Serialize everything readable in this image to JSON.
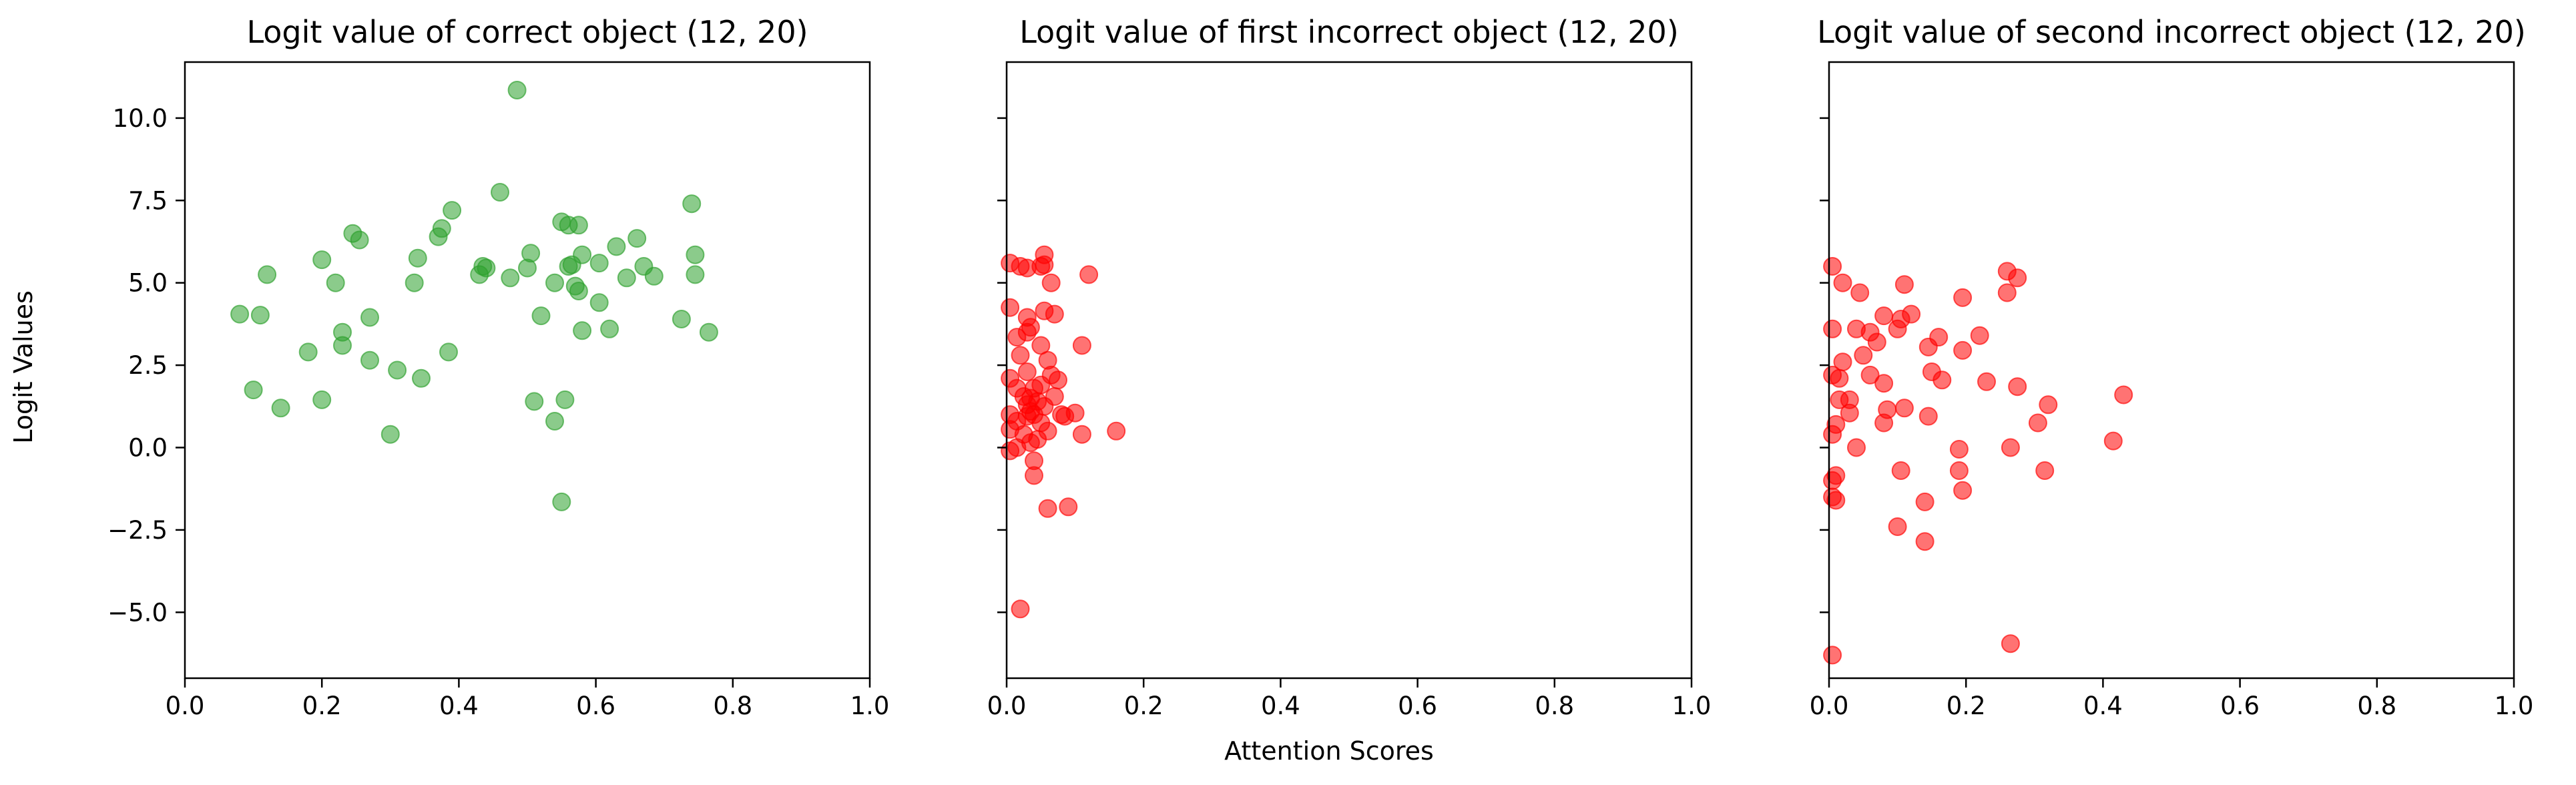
{
  "figure": {
    "xlabel": "Attention Scores",
    "ylabel": "Logit Values"
  },
  "chart_data": [
    {
      "type": "scatter",
      "title": "Logit value of correct object (12, 20)",
      "xlabel": "",
      "ylabel": "Logit Values",
      "xlim": [
        0.0,
        1.0
      ],
      "ylim": [
        -7.0,
        11.7
      ],
      "xticks": [
        0.0,
        0.2,
        0.4,
        0.6,
        0.8,
        1.0
      ],
      "xtick_labels": [
        "0.0",
        "0.2",
        "0.4",
        "0.6",
        "0.8",
        "1.0"
      ],
      "yticks": [
        -5.0,
        -2.5,
        0.0,
        2.5,
        5.0,
        7.5,
        10.0
      ],
      "ytick_labels": [
        "−5.0",
        "−2.5",
        "0.0",
        "2.5",
        "5.0",
        "7.5",
        "10.0"
      ],
      "marker_color": "#2ca02c",
      "marker_alpha": 0.55,
      "points": [
        [
          0.08,
          4.05
        ],
        [
          0.11,
          4.02
        ],
        [
          0.12,
          5.25
        ],
        [
          0.1,
          1.75
        ],
        [
          0.14,
          1.2
        ],
        [
          0.18,
          2.9
        ],
        [
          0.2,
          5.7
        ],
        [
          0.2,
          1.45
        ],
        [
          0.22,
          5.0
        ],
        [
          0.23,
          3.5
        ],
        [
          0.23,
          3.1
        ],
        [
          0.245,
          6.5
        ],
        [
          0.255,
          6.3
        ],
        [
          0.27,
          3.95
        ],
        [
          0.27,
          2.65
        ],
        [
          0.3,
          0.4
        ],
        [
          0.31,
          2.35
        ],
        [
          0.335,
          5.0
        ],
        [
          0.34,
          5.75
        ],
        [
          0.345,
          2.1
        ],
        [
          0.37,
          6.4
        ],
        [
          0.375,
          6.65
        ],
        [
          0.385,
          2.9
        ],
        [
          0.39,
          7.2
        ],
        [
          0.43,
          5.25
        ],
        [
          0.435,
          5.5
        ],
        [
          0.44,
          5.45
        ],
        [
          0.46,
          7.75
        ],
        [
          0.475,
          5.15
        ],
        [
          0.485,
          10.85
        ],
        [
          0.5,
          5.45
        ],
        [
          0.505,
          5.9
        ],
        [
          0.51,
          1.4
        ],
        [
          0.52,
          4.0
        ],
        [
          0.54,
          5.0
        ],
        [
          0.54,
          0.8
        ],
        [
          0.55,
          6.85
        ],
        [
          0.55,
          -1.65
        ],
        [
          0.555,
          1.45
        ],
        [
          0.56,
          6.75
        ],
        [
          0.56,
          5.5
        ],
        [
          0.565,
          5.55
        ],
        [
          0.57,
          4.9
        ],
        [
          0.575,
          6.75
        ],
        [
          0.575,
          4.75
        ],
        [
          0.58,
          5.85
        ],
        [
          0.58,
          3.55
        ],
        [
          0.605,
          5.6
        ],
        [
          0.605,
          4.4
        ],
        [
          0.62,
          3.6
        ],
        [
          0.63,
          6.1
        ],
        [
          0.645,
          5.15
        ],
        [
          0.66,
          6.35
        ],
        [
          0.67,
          5.5
        ],
        [
          0.685,
          5.2
        ],
        [
          0.725,
          3.9
        ],
        [
          0.74,
          7.4
        ],
        [
          0.745,
          5.85
        ],
        [
          0.745,
          5.25
        ],
        [
          0.765,
          3.5
        ]
      ]
    },
    {
      "type": "scatter",
      "title": "Logit value of first incorrect object (12, 20)",
      "xlabel": "Attention Scores",
      "ylabel": "",
      "xlim": [
        0.0,
        1.0
      ],
      "ylim": [
        -7.0,
        11.7
      ],
      "xticks": [
        0.0,
        0.2,
        0.4,
        0.6,
        0.8,
        1.0
      ],
      "xtick_labels": [
        "0.0",
        "0.2",
        "0.4",
        "0.6",
        "0.8",
        "1.0"
      ],
      "yticks": [
        -5.0,
        -2.5,
        0.0,
        2.5,
        5.0,
        7.5,
        10.0
      ],
      "marker_color": "#ff0000",
      "marker_alpha": 0.55,
      "points": [
        [
          0.005,
          5.6
        ],
        [
          0.005,
          4.25
        ],
        [
          0.005,
          2.1
        ],
        [
          0.005,
          1.0
        ],
        [
          0.005,
          0.55
        ],
        [
          0.005,
          -0.1
        ],
        [
          0.015,
          3.35
        ],
        [
          0.015,
          1.8
        ],
        [
          0.015,
          0.8
        ],
        [
          0.015,
          0.0
        ],
        [
          0.02,
          5.5
        ],
        [
          0.02,
          2.8
        ],
        [
          0.02,
          -4.9
        ],
        [
          0.025,
          1.55
        ],
        [
          0.025,
          0.4
        ],
        [
          0.03,
          5.45
        ],
        [
          0.03,
          3.95
        ],
        [
          0.03,
          3.5
        ],
        [
          0.03,
          2.3
        ],
        [
          0.03,
          1.3
        ],
        [
          0.03,
          0.95
        ],
        [
          0.035,
          3.65
        ],
        [
          0.035,
          1.5
        ],
        [
          0.035,
          1.1
        ],
        [
          0.035,
          0.15
        ],
        [
          0.04,
          -0.4
        ],
        [
          0.04,
          -0.85
        ],
        [
          0.04,
          1.8
        ],
        [
          0.04,
          1.0
        ],
        [
          0.045,
          1.4
        ],
        [
          0.045,
          0.25
        ],
        [
          0.05,
          5.5
        ],
        [
          0.05,
          3.1
        ],
        [
          0.05,
          1.9
        ],
        [
          0.05,
          0.75
        ],
        [
          0.055,
          5.85
        ],
        [
          0.055,
          5.55
        ],
        [
          0.055,
          4.15
        ],
        [
          0.055,
          1.25
        ],
        [
          0.06,
          2.65
        ],
        [
          0.06,
          0.5
        ],
        [
          0.06,
          -1.85
        ],
        [
          0.065,
          5.0
        ],
        [
          0.065,
          2.2
        ],
        [
          0.07,
          4.05
        ],
        [
          0.07,
          1.55
        ],
        [
          0.075,
          2.05
        ],
        [
          0.08,
          1.0
        ],
        [
          0.085,
          0.95
        ],
        [
          0.09,
          -1.8
        ],
        [
          0.1,
          1.05
        ],
        [
          0.11,
          3.1
        ],
        [
          0.11,
          0.4
        ],
        [
          0.12,
          5.25
        ],
        [
          0.16,
          0.5
        ]
      ]
    },
    {
      "type": "scatter",
      "title": "Logit value of second incorrect object (12, 20)",
      "xlabel": "",
      "ylabel": "",
      "xlim": [
        0.0,
        1.0
      ],
      "ylim": [
        -7.0,
        11.7
      ],
      "xticks": [
        0.0,
        0.2,
        0.4,
        0.6,
        0.8,
        1.0
      ],
      "xtick_labels": [
        "0.0",
        "0.2",
        "0.4",
        "0.6",
        "0.8",
        "1.0"
      ],
      "yticks": [
        -5.0,
        -2.5,
        0.0,
        2.5,
        5.0,
        7.5,
        10.0
      ],
      "marker_color": "#ff0000",
      "marker_alpha": 0.55,
      "points": [
        [
          0.005,
          5.5
        ],
        [
          0.005,
          3.6
        ],
        [
          0.005,
          2.2
        ],
        [
          0.005,
          0.4
        ],
        [
          0.005,
          -1.0
        ],
        [
          0.005,
          -1.5
        ],
        [
          0.005,
          -6.3
        ],
        [
          0.01,
          0.7
        ],
        [
          0.01,
          -0.85
        ],
        [
          0.01,
          -1.6
        ],
        [
          0.015,
          2.1
        ],
        [
          0.015,
          1.45
        ],
        [
          0.02,
          5.0
        ],
        [
          0.02,
          2.6
        ],
        [
          0.03,
          1.45
        ],
        [
          0.03,
          1.05
        ],
        [
          0.04,
          3.6
        ],
        [
          0.04,
          0.0
        ],
        [
          0.045,
          4.7
        ],
        [
          0.05,
          2.8
        ],
        [
          0.06,
          3.5
        ],
        [
          0.06,
          2.2
        ],
        [
          0.07,
          3.2
        ],
        [
          0.08,
          4.0
        ],
        [
          0.08,
          1.95
        ],
        [
          0.08,
          0.75
        ],
        [
          0.085,
          1.15
        ],
        [
          0.1,
          3.6
        ],
        [
          0.1,
          -2.4
        ],
        [
          0.105,
          3.9
        ],
        [
          0.105,
          -0.7
        ],
        [
          0.11,
          4.95
        ],
        [
          0.11,
          1.2
        ],
        [
          0.12,
          4.05
        ],
        [
          0.14,
          -1.65
        ],
        [
          0.14,
          -2.85
        ],
        [
          0.145,
          3.05
        ],
        [
          0.145,
          0.95
        ],
        [
          0.15,
          2.3
        ],
        [
          0.16,
          3.35
        ],
        [
          0.165,
          2.05
        ],
        [
          0.19,
          -0.05
        ],
        [
          0.19,
          -0.7
        ],
        [
          0.195,
          4.55
        ],
        [
          0.195,
          2.95
        ],
        [
          0.195,
          -1.3
        ],
        [
          0.22,
          3.4
        ],
        [
          0.23,
          2.0
        ],
        [
          0.26,
          5.35
        ],
        [
          0.26,
          4.7
        ],
        [
          0.265,
          0.0
        ],
        [
          0.265,
          -5.95
        ],
        [
          0.275,
          5.15
        ],
        [
          0.275,
          1.85
        ],
        [
          0.305,
          0.75
        ],
        [
          0.315,
          -0.7
        ],
        [
          0.32,
          1.3
        ],
        [
          0.415,
          0.2
        ],
        [
          0.43,
          1.6
        ]
      ]
    }
  ]
}
